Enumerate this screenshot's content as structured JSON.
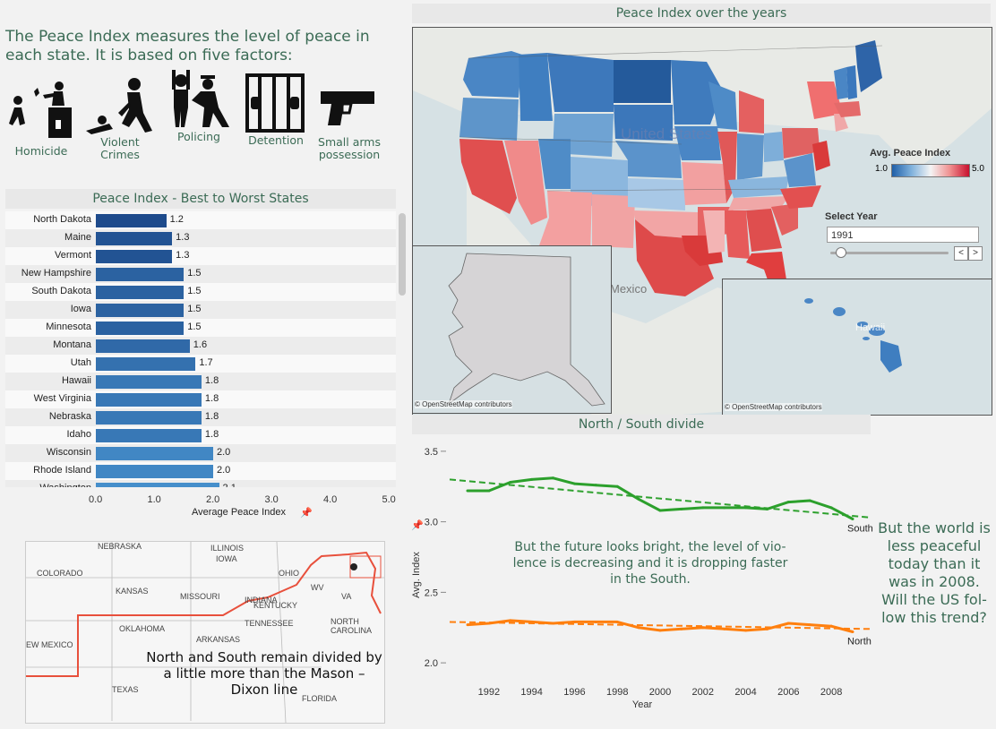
{
  "intro": {
    "text": "The Peace Index measures the level of peace in each state. It is based on five factors:"
  },
  "factors": [
    {
      "label": "Homicide",
      "icon": "homicide-icon"
    },
    {
      "label": "Violent Crimes",
      "icon": "violent-crimes-icon"
    },
    {
      "label": "Policing",
      "icon": "policing-icon"
    },
    {
      "label": "Detention",
      "icon": "detention-icon"
    },
    {
      "label": "Small arms possession",
      "icon": "gun-icon"
    }
  ],
  "bar_chart": {
    "title": "Peace Index - Best to Worst States",
    "xlabel": "Average Peace Index",
    "ticks": [
      "0.0",
      "1.0",
      "2.0",
      "3.0",
      "4.0",
      "5.0"
    ],
    "rows": [
      {
        "state": "North Dakota",
        "value": 1.2,
        "label": "1.2"
      },
      {
        "state": "Maine",
        "value": 1.3,
        "label": "1.3"
      },
      {
        "state": "Vermont",
        "value": 1.3,
        "label": "1.3"
      },
      {
        "state": "New Hampshire",
        "value": 1.5,
        "label": "1.5"
      },
      {
        "state": "South Dakota",
        "value": 1.5,
        "label": "1.5"
      },
      {
        "state": "Iowa",
        "value": 1.5,
        "label": "1.5"
      },
      {
        "state": "Minnesota",
        "value": 1.5,
        "label": "1.5"
      },
      {
        "state": "Montana",
        "value": 1.6,
        "label": "1.6"
      },
      {
        "state": "Utah",
        "value": 1.7,
        "label": "1.7"
      },
      {
        "state": "Hawaii",
        "value": 1.8,
        "label": "1.8"
      },
      {
        "state": "West Virginia",
        "value": 1.8,
        "label": "1.8"
      },
      {
        "state": "Nebraska",
        "value": 1.8,
        "label": "1.8"
      },
      {
        "state": "Idaho",
        "value": 1.8,
        "label": "1.8"
      },
      {
        "state": "Wisconsin",
        "value": 2.0,
        "label": "2.0"
      },
      {
        "state": "Rhode Island",
        "value": 2.0,
        "label": "2.0"
      },
      {
        "state": "Washington",
        "value": 2.1,
        "label": "2.1"
      }
    ]
  },
  "map": {
    "title": "Peace Index over the years",
    "legend_title": "Avg. Peace Index",
    "legend_min": "1.0",
    "legend_max": "5.0",
    "select_year_label": "Select Year",
    "year": "1991",
    "country_label": "United States",
    "mexico_label": "Mexico",
    "hawaii_label": "Hawaii",
    "attribution": "© OpenStreetMap contributors"
  },
  "mason_dixon": {
    "caption": "North and South remain divided by a little more than the Mason – Dixon line",
    "places": [
      "NEBRASKA",
      "IOWA",
      "ILLINOIS",
      "INDIANA",
      "OHIO",
      "KANSAS",
      "MISSOURI",
      "OKLAHOMA",
      "ARKANSAS",
      "TENNESSEE",
      "TEXAS",
      "COLORADO",
      "EW MEXICO",
      "KENTUCKY",
      "NORTH CAROLINA",
      "FLORIDA",
      "WV",
      "VA"
    ]
  },
  "chart_data": {
    "type": "line",
    "title": "North / South divide",
    "xlabel": "Year",
    "ylabel": "Avg. Index",
    "ylim": [
      1.95,
      3.55
    ],
    "yticks": [
      "2.0",
      "2.5",
      "3.0",
      "3.5"
    ],
    "xticks": [
      "1992",
      "1994",
      "1996",
      "1998",
      "2000",
      "2002",
      "2004",
      "2006",
      "2008"
    ],
    "x": [
      1991,
      1992,
      1993,
      1994,
      1995,
      1996,
      1997,
      1998,
      1999,
      2000,
      2001,
      2002,
      2003,
      2004,
      2005,
      2006,
      2007,
      2008,
      2009
    ],
    "series": [
      {
        "name": "South",
        "color": "#2ca02c",
        "values": [
          3.22,
          3.22,
          3.28,
          3.3,
          3.31,
          3.27,
          3.26,
          3.25,
          3.16,
          3.08,
          3.09,
          3.1,
          3.1,
          3.1,
          3.09,
          3.14,
          3.15,
          3.1,
          3.02
        ],
        "trend": [
          3.3,
          3.03
        ]
      },
      {
        "name": "North",
        "color": "#ff7f0e",
        "values": [
          2.27,
          2.28,
          2.3,
          2.29,
          2.28,
          2.29,
          2.29,
          2.29,
          2.25,
          2.23,
          2.24,
          2.25,
          2.24,
          2.23,
          2.24,
          2.28,
          2.27,
          2.26,
          2.22
        ],
        "trend": [
          2.29,
          2.24
        ]
      }
    ]
  },
  "notes": {
    "future": "But the future looks bright, the level of vio-lence is decreasing and it is dropping faster in the South.",
    "world": "But the world is less peaceful today than it was in 2008. Will the US fol-low this trend?"
  },
  "colors": {
    "accent": "#3b6b55",
    "south": "#2ca02c",
    "north": "#ff7f0e"
  }
}
